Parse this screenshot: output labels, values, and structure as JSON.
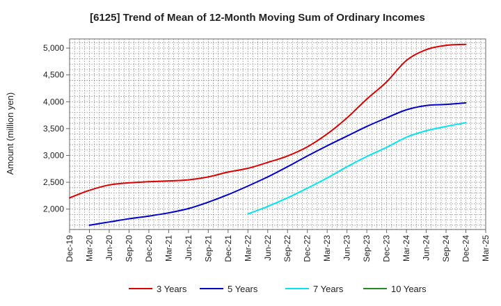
{
  "chart_data": {
    "type": "line",
    "title": "[6125]  Trend of Mean of 12-Month Moving Sum of Ordinary Incomes",
    "ylabel": "Amount (million yen)",
    "xlabel": "",
    "ylim": [
      1620,
      5170
    ],
    "yticks": [
      2000,
      2500,
      3000,
      3500,
      4000,
      4500,
      5000
    ],
    "ytick_labels": [
      "2,000",
      "2,500",
      "3,000",
      "3,500",
      "4,000",
      "4,500",
      "5,000"
    ],
    "x_ticks": [
      "Dec-19",
      "Mar-20",
      "Jun-20",
      "Sep-20",
      "Dec-20",
      "Mar-21",
      "Jun-21",
      "Sep-21",
      "Dec-21",
      "Mar-22",
      "Jun-22",
      "Sep-22",
      "Dec-22",
      "Mar-23",
      "Jun-23",
      "Sep-23",
      "Dec-23",
      "Mar-24",
      "Jun-24",
      "Sep-24",
      "Dec-24",
      "Mar-25"
    ],
    "grid": true,
    "legend_position": "bottom",
    "series": [
      {
        "name": "3 Years",
        "color": "#dd0000",
        "values": [
          2210,
          2350,
          2450,
          2490,
          2510,
          2525,
          2545,
          2600,
          2690,
          2760,
          2870,
          2990,
          3160,
          3400,
          3700,
          4050,
          4370,
          4770,
          4970,
          5050,
          5070,
          null
        ]
      },
      {
        "name": "5 Years",
        "color": "#0000cc",
        "values": [
          null,
          1700,
          1760,
          1820,
          1870,
          1930,
          2010,
          2130,
          2270,
          2430,
          2600,
          2790,
          2990,
          3180,
          3360,
          3540,
          3700,
          3850,
          3930,
          3950,
          3980,
          null
        ]
      },
      {
        "name": "7 Years",
        "color": "#00e5ee",
        "values": [
          null,
          null,
          null,
          null,
          null,
          null,
          null,
          null,
          null,
          1910,
          2050,
          2210,
          2390,
          2580,
          2790,
          2980,
          3150,
          3340,
          3460,
          3540,
          3610,
          null
        ]
      },
      {
        "name": "10 Years",
        "color": "#228b22",
        "values": [
          null,
          null,
          null,
          null,
          null,
          null,
          null,
          null,
          null,
          null,
          null,
          null,
          null,
          null,
          null,
          null,
          null,
          null,
          null,
          null,
          null,
          null
        ]
      }
    ]
  }
}
